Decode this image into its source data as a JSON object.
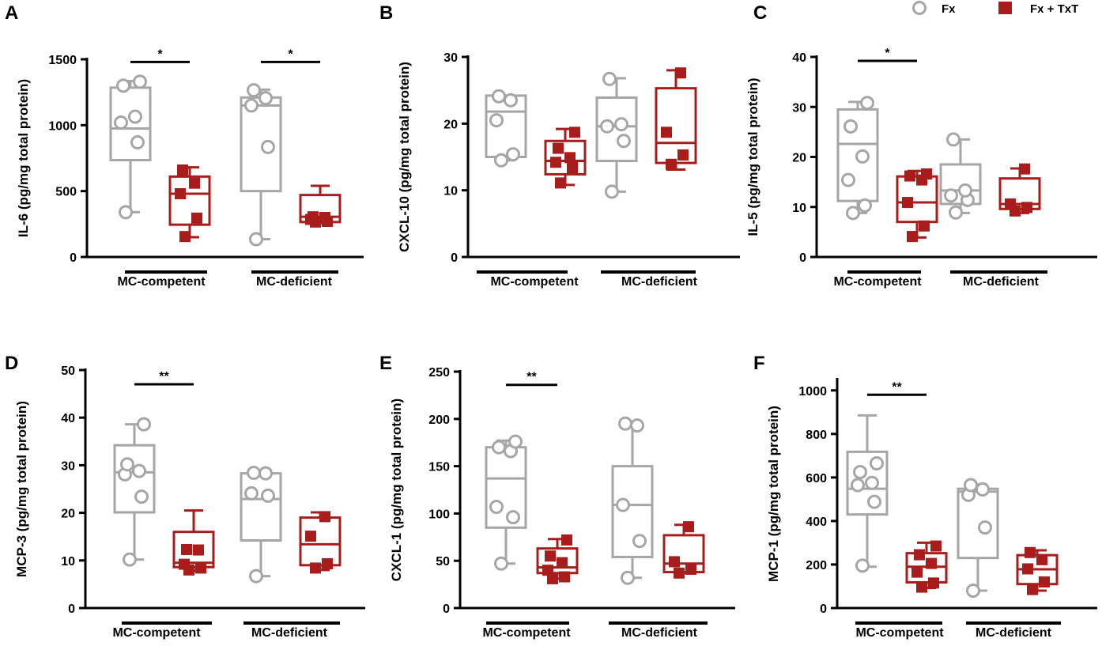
{
  "legend": {
    "position": "top-right",
    "items": [
      {
        "label": "Fx",
        "marker": "open-circle-icon",
        "color": "#a6a6a6"
      },
      {
        "label": "Fx + TxT",
        "marker": "filled-square-icon",
        "color": "#a91c1c"
      }
    ]
  },
  "colors": {
    "fx": "#a6a6a6",
    "txt": "#a91c1c",
    "axis": "#000000"
  },
  "chart_data": [
    {
      "panel": "A",
      "type": "box",
      "ylabel": "IL-6 (pg/mg total protein)",
      "ylim": [
        0,
        1500
      ],
      "yticks": [
        0,
        500,
        1000,
        1500
      ],
      "groups": [
        "MC-competent",
        "MC-deficient"
      ],
      "series": [
        {
          "name": "Fx",
          "boxes": [
            {
              "group": "MC-competent",
              "min": 340,
              "q1": 735,
              "median": 975,
              "q3": 1285,
              "max": 1335,
              "points": [
                340,
                870,
                1020,
                1065,
                1300,
                1330
              ]
            },
            {
              "group": "MC-deficient",
              "min": 135,
              "q1": 500,
              "median": 1150,
              "q3": 1210,
              "max": 1270,
              "points": [
                135,
                835,
                1150,
                1205,
                1265
              ]
            }
          ]
        },
        {
          "name": "Fx + TxT",
          "boxes": [
            {
              "group": "MC-competent",
              "min": 150,
              "q1": 245,
              "median": 480,
              "q3": 610,
              "max": 680,
              "points": [
                155,
                295,
                480,
                560,
                660
              ]
            },
            {
              "group": "MC-deficient",
              "min": 255,
              "q1": 265,
              "median": 305,
              "q3": 470,
              "max": 540,
              "points": [
                265,
                270,
                285,
                300,
                305
              ]
            }
          ]
        }
      ],
      "significance": [
        {
          "group": "MC-competent",
          "label": "*",
          "y": 1480
        },
        {
          "group": "MC-deficient",
          "label": "*",
          "y": 1480
        }
      ]
    },
    {
      "panel": "B",
      "type": "box",
      "ylabel": "CXCL-10 (pg/mg total protein)",
      "ylim": [
        0,
        30
      ],
      "yticks": [
        0,
        10,
        20,
        30
      ],
      "groups": [
        "MC-competent",
        "MC-deficient"
      ],
      "series": [
        {
          "name": "Fx",
          "boxes": [
            {
              "group": "MC-competent",
              "min": 14.5,
              "q1": 15,
              "median": 21.8,
              "q3": 24.2,
              "max": 24.2,
              "points": [
                14.5,
                15.4,
                20.5,
                23.5,
                24.1
              ]
            },
            {
              "group": "MC-deficient",
              "min": 9.8,
              "q1": 14.4,
              "median": 19.6,
              "q3": 23.9,
              "max": 26.8,
              "points": [
                9.8,
                17.4,
                19.6,
                19.9,
                26.7
              ]
            }
          ]
        },
        {
          "name": "Fx + TxT",
          "boxes": [
            {
              "group": "MC-competent",
              "min": 10.8,
              "q1": 12.4,
              "median": 14.4,
              "q3": 17.4,
              "max": 19.2,
              "points": [
                11.1,
                13.4,
                14.2,
                14.9,
                16.3,
                18.7
              ]
            },
            {
              "group": "MC-deficient",
              "min": 13.1,
              "q1": 14.1,
              "median": 17.1,
              "q3": 25.3,
              "max": 28.0,
              "points": [
                13.9,
                15.3,
                18.7,
                27.6
              ]
            }
          ]
        }
      ],
      "significance": []
    },
    {
      "panel": "C",
      "type": "box",
      "ylabel": "IL-5 (pg/mg total protein)",
      "ylim": [
        0,
        40
      ],
      "yticks": [
        0,
        10,
        20,
        30,
        40
      ],
      "groups": [
        "MC-competent",
        "MC-deficient"
      ],
      "series": [
        {
          "name": "Fx",
          "boxes": [
            {
              "group": "MC-competent",
              "min": 8.8,
              "q1": 11.2,
              "median": 22.6,
              "q3": 29.5,
              "max": 31.0,
              "points": [
                8.8,
                10.3,
                15.4,
                20.1,
                26.1,
                30.8
              ]
            },
            {
              "group": "MC-deficient",
              "min": 8.8,
              "q1": 10.6,
              "median": 13.3,
              "q3": 18.5,
              "max": 23.5,
              "points": [
                8.9,
                11.4,
                12.3,
                13.3,
                23.5
              ]
            }
          ]
        },
        {
          "name": "Fx + TxT",
          "boxes": [
            {
              "group": "MC-competent",
              "min": 3.9,
              "q1": 7.0,
              "median": 10.9,
              "q3": 16.1,
              "max": 17.2,
              "points": [
                4.1,
                6.2,
                10.9,
                15.4,
                16.2,
                16.6
              ]
            },
            {
              "group": "MC-deficient",
              "min": 8.8,
              "q1": 9.6,
              "median": 10.6,
              "q3": 15.7,
              "max": 17.7,
              "points": [
                9.2,
                9.9,
                10.6,
                17.6
              ]
            }
          ]
        }
      ],
      "significance": [
        {
          "group": "MC-competent",
          "label": "*",
          "y": 39.2
        }
      ]
    },
    {
      "panel": "D",
      "type": "box",
      "ylabel": "MCP-3 (pg/mg total protein)",
      "ylim": [
        0,
        50
      ],
      "yticks": [
        0,
        10,
        20,
        30,
        40,
        50
      ],
      "groups": [
        "MC-competent",
        "MC-deficient"
      ],
      "series": [
        {
          "name": "Fx",
          "boxes": [
            {
              "group": "MC-competent",
              "min": 10.2,
              "q1": 20.1,
              "median": 28.5,
              "q3": 34.2,
              "max": 38.6,
              "points": [
                10.2,
                23.4,
                28.1,
                28.8,
                30.2,
                38.6
              ]
            },
            {
              "group": "MC-deficient",
              "min": 6.7,
              "q1": 14.2,
              "median": 22.9,
              "q3": 28.3,
              "max": 28.4,
              "points": [
                6.7,
                23.6,
                24.1,
                28.3,
                28.4
              ]
            }
          ]
        },
        {
          "name": "Fx + TxT",
          "boxes": [
            {
              "group": "MC-competent",
              "min": 7.8,
              "q1": 8.6,
              "median": 9.5,
              "q3": 16.0,
              "max": 20.5,
              "points": [
                8.0,
                8.4,
                9.2,
                12.2,
                12.3
              ]
            },
            {
              "group": "MC-deficient",
              "min": 8.0,
              "q1": 9.0,
              "median": 13.4,
              "q3": 19.0,
              "max": 20.1,
              "points": [
                8.4,
                9.3,
                15.1,
                19.2
              ]
            }
          ]
        }
      ],
      "significance": [
        {
          "group": "MC-competent",
          "label": "**",
          "y": 47
        }
      ]
    },
    {
      "panel": "E",
      "type": "box",
      "ylabel": "CXCL-1 (pg/mg total protein)",
      "ylim": [
        0,
        250
      ],
      "yticks": [
        0,
        50,
        100,
        150,
        200,
        250
      ],
      "groups": [
        "MC-competent",
        "MC-deficient"
      ],
      "series": [
        {
          "name": "Fx",
          "boxes": [
            {
              "group": "MC-competent",
              "min": 47,
              "q1": 85,
              "median": 137,
              "q3": 170,
              "max": 177,
              "points": [
                47,
                96,
                107,
                166,
                170,
                176
              ]
            },
            {
              "group": "MC-deficient",
              "min": 32,
              "q1": 54,
              "median": 109,
              "q3": 150,
              "max": 195,
              "points": [
                32,
                71,
                109,
                193,
                195
              ]
            }
          ]
        },
        {
          "name": "Fx + TxT",
          "boxes": [
            {
              "group": "MC-competent",
              "min": 31,
              "q1": 37,
              "median": 43,
              "q3": 63,
              "max": 73,
              "points": [
                31,
                33,
                40,
                48,
                55,
                72
              ]
            },
            {
              "group": "MC-deficient",
              "min": 37,
              "q1": 38,
              "median": 47,
              "q3": 77,
              "max": 88,
              "points": [
                37,
                41,
                49,
                86
              ]
            }
          ]
        }
      ],
      "significance": [
        {
          "group": "MC-competent",
          "label": "**",
          "y": 236
        }
      ]
    },
    {
      "panel": "F",
      "type": "box",
      "ylabel": "MCP-1 (pg/mg total protein)",
      "ylim": [
        0,
        1050
      ],
      "yticks": [
        0,
        200,
        400,
        600,
        800,
        1000
      ],
      "groups": [
        "MC-competent",
        "MC-deficient"
      ],
      "series": [
        {
          "name": "Fx",
          "boxes": [
            {
              "group": "MC-competent",
              "min": 190,
              "q1": 430,
              "median": 548,
              "q3": 718,
              "max": 885,
              "points": [
                195,
                488,
                565,
                575,
                625,
                665
              ]
            },
            {
              "group": "MC-deficient",
              "min": 80,
              "q1": 230,
              "median": 535,
              "q3": 548,
              "max": 568,
              "points": [
                80,
                370,
                520,
                545,
                565
              ]
            }
          ]
        },
        {
          "name": "Fx + TxT",
          "boxes": [
            {
              "group": "MC-competent",
              "min": 92,
              "q1": 118,
              "median": 190,
              "q3": 252,
              "max": 300,
              "points": [
                96,
                115,
                165,
                205,
                245,
                285
              ]
            },
            {
              "group": "MC-deficient",
              "min": 80,
              "q1": 110,
              "median": 178,
              "q3": 243,
              "max": 265,
              "points": [
                85,
                120,
                180,
                222,
                255
              ]
            }
          ]
        }
      ],
      "significance": [
        {
          "group": "MC-competent",
          "label": "**",
          "y": 980
        }
      ]
    }
  ]
}
